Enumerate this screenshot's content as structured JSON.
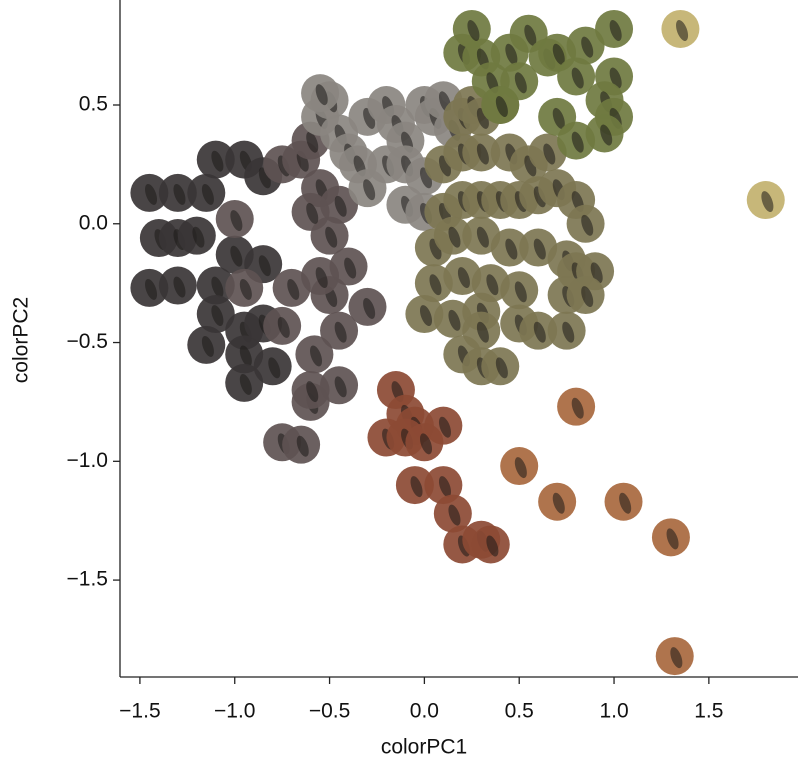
{
  "chart_data": {
    "type": "scatter",
    "xlabel": "colorPC1",
    "ylabel": "colorPC2",
    "xlim": [
      -1.605,
      1.97
    ],
    "ylim": [
      -1.908,
      0.942
    ],
    "xticks": [
      {
        "value": -1.5,
        "label": "−1.5"
      },
      {
        "value": -1.0,
        "label": "−1.0"
      },
      {
        "value": -0.5,
        "label": "−0.5"
      },
      {
        "value": 0.0,
        "label": "0.0"
      },
      {
        "value": 0.5,
        "label": "0.5"
      },
      {
        "value": 1.0,
        "label": "1.0"
      },
      {
        "value": 1.5,
        "label": "1.5"
      }
    ],
    "yticks": [
      {
        "value": -1.5,
        "label": "−1.5"
      },
      {
        "value": -1.0,
        "label": "−1.0"
      },
      {
        "value": -0.5,
        "label": "−0.5"
      },
      {
        "value": 0.0,
        "label": "0.0"
      },
      {
        "value": 0.5,
        "label": "0.5"
      }
    ],
    "series": [
      {
        "color": "#3a3536",
        "x": [
          -1.45,
          -1.3,
          -1.15,
          -1.4,
          -1.3,
          -1.2,
          -1.45,
          -1.3,
          -1.1,
          -1.15,
          -1.1,
          -0.95,
          -0.95,
          -0.85,
          -0.95,
          -0.8,
          -1.1,
          -0.95,
          -0.85,
          -1.0,
          -0.85
        ],
        "values": [
          0.13,
          0.13,
          0.13,
          -0.06,
          -0.06,
          -0.05,
          -0.27,
          -0.26,
          -0.26,
          -0.51,
          -0.38,
          -0.45,
          -0.55,
          -0.42,
          -0.67,
          -0.6,
          0.27,
          0.27,
          0.2,
          -0.13,
          -0.17
        ]
      },
      {
        "color": "#5e5252",
        "x": [
          -1.0,
          -0.95,
          -0.75,
          -0.75,
          -0.65,
          -0.6,
          -0.58,
          -0.6,
          -0.45,
          -0.45,
          -0.3,
          -0.5,
          -0.7,
          -0.55,
          -0.4,
          -0.75,
          -0.65,
          -0.6,
          -0.55,
          -0.45,
          -0.5,
          -0.6
        ],
        "values": [
          0.02,
          -0.27,
          -0.43,
          -0.92,
          -0.93,
          -0.75,
          -0.55,
          -0.7,
          -0.68,
          -0.45,
          -0.35,
          -0.3,
          -0.27,
          -0.22,
          -0.18,
          0.25,
          0.27,
          0.35,
          0.15,
          0.08,
          -0.05,
          0.05
        ]
      },
      {
        "color": "#8a8680",
        "x": [
          -0.55,
          -0.5,
          -0.45,
          -0.4,
          -0.35,
          -0.3,
          -0.2,
          -0.15,
          -0.1,
          0.0,
          0.05,
          0.1,
          0.15,
          -0.3,
          -0.2,
          -0.1,
          0.0,
          -0.55,
          -0.1,
          0.0
        ],
        "values": [
          0.45,
          0.52,
          0.38,
          0.3,
          0.25,
          0.45,
          0.5,
          0.42,
          0.35,
          0.5,
          0.45,
          0.52,
          0.4,
          0.15,
          0.25,
          0.25,
          0.2,
          0.55,
          0.08,
          0.05
        ]
      },
      {
        "color": "#7d7652",
        "x": [
          0.2,
          0.25,
          0.3,
          0.4,
          0.1,
          0.2,
          0.3,
          0.45,
          0.55,
          0.65,
          0.1,
          0.2,
          0.3,
          0.4,
          0.5,
          0.6,
          0.7,
          0.8,
          0.85,
          0.05,
          0.15,
          0.3,
          0.45,
          0.6,
          0.75,
          0.8,
          0.9,
          0.05,
          0.2,
          0.35,
          0.5,
          0.75,
          0.85,
          0.0,
          0.15,
          0.3,
          0.5,
          0.6,
          0.75,
          0.2,
          0.3,
          0.4,
          0.3
        ],
        "values": [
          0.45,
          0.5,
          0.45,
          0.5,
          0.25,
          0.3,
          0.3,
          0.3,
          0.25,
          0.3,
          0.05,
          0.1,
          0.1,
          0.1,
          0.1,
          0.12,
          0.15,
          0.1,
          0.0,
          -0.1,
          -0.05,
          -0.05,
          -0.1,
          -0.1,
          -0.15,
          -0.2,
          -0.2,
          -0.25,
          -0.22,
          -0.25,
          -0.28,
          -0.3,
          -0.3,
          -0.38,
          -0.4,
          -0.37,
          -0.42,
          -0.45,
          -0.45,
          -0.55,
          -0.6,
          -0.6,
          -0.45
        ]
      },
      {
        "color": "#6f7a40",
        "x": [
          0.2,
          0.3,
          0.35,
          0.45,
          0.5,
          0.55,
          0.65,
          0.7,
          0.85,
          1.0,
          0.8,
          1.0,
          0.95,
          1.0,
          0.7,
          0.4,
          0.25,
          0.8,
          0.95
        ],
        "values": [
          0.72,
          0.7,
          0.6,
          0.72,
          0.6,
          0.8,
          0.7,
          0.72,
          0.75,
          0.82,
          0.62,
          0.62,
          0.52,
          0.45,
          0.45,
          0.5,
          0.82,
          0.35,
          0.38
        ]
      },
      {
        "color": "#c2b16e",
        "x": [
          1.35,
          1.8
        ],
        "values": [
          0.82,
          0.1
        ]
      },
      {
        "color": "#8c4a34",
        "x": [
          -0.15,
          -0.1,
          -0.05,
          0.1,
          -0.2,
          -0.1,
          0.0,
          -0.05,
          0.1,
          0.15,
          0.2,
          0.3,
          0.35
        ],
        "values": [
          -0.7,
          -0.8,
          -0.85,
          -0.85,
          -0.9,
          -0.9,
          -0.92,
          -1.1,
          -1.1,
          -1.22,
          -1.35,
          -1.33,
          -1.35
        ]
      },
      {
        "color": "#a8683e",
        "x": [
          0.5,
          0.8,
          0.7,
          1.05,
          1.3,
          1.32
        ],
        "values": [
          -1.02,
          -0.77,
          -1.17,
          -1.17,
          -1.32,
          -1.82
        ]
      }
    ]
  }
}
